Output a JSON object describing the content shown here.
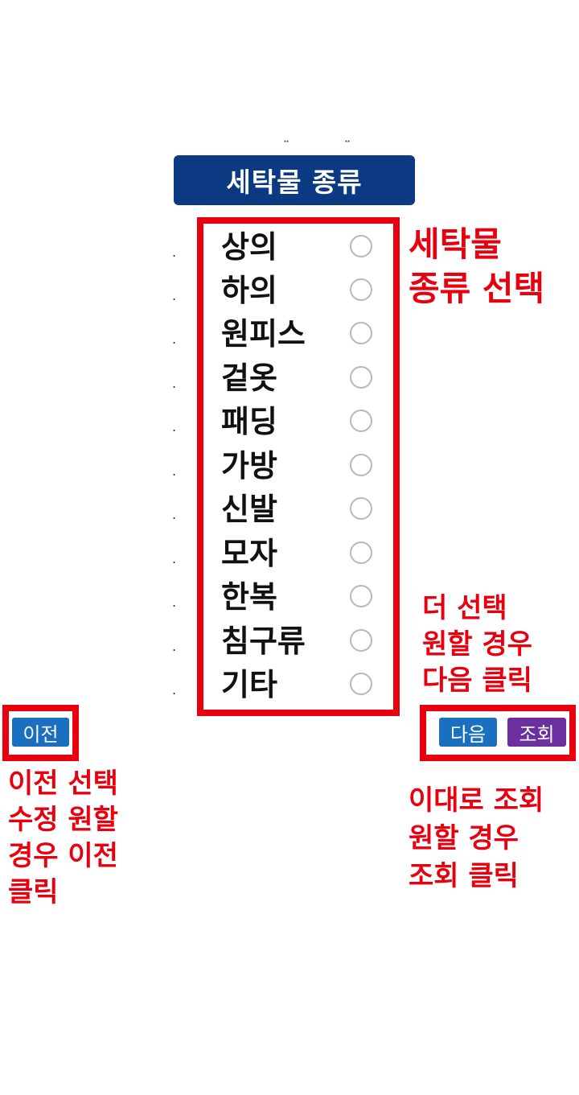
{
  "header": {
    "title": "세탁물 종류"
  },
  "items": [
    {
      "label": "상의"
    },
    {
      "label": "하의"
    },
    {
      "label": "원피스"
    },
    {
      "label": "겉옷"
    },
    {
      "label": "패딩"
    },
    {
      "label": "가방"
    },
    {
      "label": "신발"
    },
    {
      "label": "모자"
    },
    {
      "label": "한복"
    },
    {
      "label": "침구류"
    },
    {
      "label": "기타"
    }
  ],
  "buttons": {
    "prev_label": "이전",
    "next_label": "다음",
    "search_label": "조회"
  },
  "annotations": {
    "select_line1": "세탁물",
    "select_line2": "종류 선택",
    "more_line1": "더 선택",
    "more_line2": "원할 경우",
    "more_line3": "다음 클릭",
    "prev_line1": "이전 선택",
    "prev_line2": "수정 원할",
    "prev_line3": "경우 이전",
    "prev_line4": "클릭",
    "search_line1": "이대로 조회",
    "search_line2": "원할 경우",
    "search_line3": "조회 클릭"
  },
  "colors": {
    "header_bg": "#0b3a82",
    "highlight_red": "#e8000f",
    "prev_next_blue": "#1a6fbf",
    "search_purple": "#6b2fa0"
  }
}
